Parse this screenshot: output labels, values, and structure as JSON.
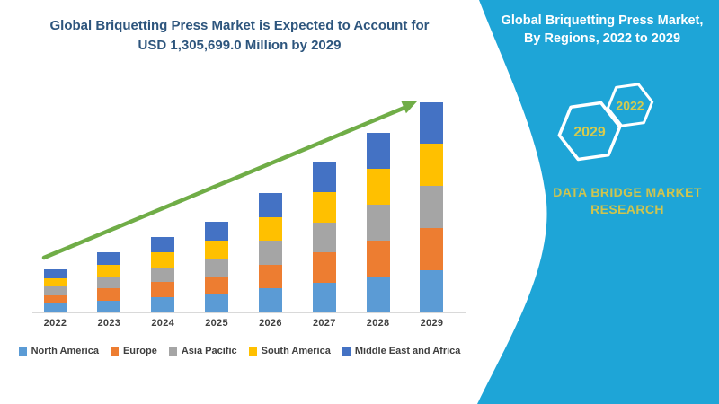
{
  "main_title": {
    "line1": "Global Briquetting Press Market is Expected to Account for",
    "line2": "USD 1,305,699.0 Million by 2029",
    "color": "#2D557D"
  },
  "chart_data": {
    "type": "bar",
    "subtype": "stacked-column",
    "title": "Global Briquetting Press Market is Expected to Account for USD 1,305,699.0 Million by 2029",
    "unit": "USD Million",
    "categories": [
      "2022",
      "2023",
      "2024",
      "2025",
      "2026",
      "2027",
      "2028",
      "2029"
    ],
    "series": [
      {
        "name": "North America",
        "color": "#5B9BD5",
        "values": [
          53440,
          74260,
          93560,
          112040,
          148120,
          186540,
          223280,
          261140
        ]
      },
      {
        "name": "Europe",
        "color": "#ED7D31",
        "values": [
          53440,
          74260,
          93560,
          112040,
          148120,
          186540,
          223280,
          261140
        ]
      },
      {
        "name": "Asia Pacific",
        "color": "#A5A5A5",
        "values": [
          53440,
          74260,
          93560,
          112040,
          148120,
          186540,
          223280,
          261140
        ]
      },
      {
        "name": "South America",
        "color": "#FFC000",
        "values": [
          53440,
          74260,
          93560,
          112040,
          148120,
          186540,
          223280,
          261140
        ]
      },
      {
        "name": "Middle East and Africa",
        "color": "#4472C4",
        "values": [
          53440,
          74260,
          93560,
          112040,
          148120,
          186540,
          223280,
          261140
        ]
      }
    ],
    "totals": [
      267200,
      371300,
      467800,
      560200,
      740600,
      932700,
      1116400,
      1305699
    ],
    "ylim": [
      0,
      1305699
    ],
    "xlabel": "",
    "ylabel": "",
    "grid": false,
    "y_axis_visible": false,
    "legend_position": "bottom",
    "annotations": [
      "upward trend arrow"
    ],
    "trend_arrow_color": "#70AD47",
    "axis_line_color": "#D9D9D9",
    "label_color": "#3F3F3F"
  },
  "sidebar": {
    "bg_color": "#1EA5D7",
    "title_line1": "Global Briquetting Press Market,",
    "title_line2": "By Regions, 2022 to 2029",
    "hexagon_back_label": "2029",
    "hexagon_front_label": "2022",
    "hexagon_text_color": "#D6CB4D",
    "brand_line1": "DATA BRIDGE MARKET",
    "brand_line2": "RESEARCH",
    "brand_text_color": "#CFC44E"
  }
}
